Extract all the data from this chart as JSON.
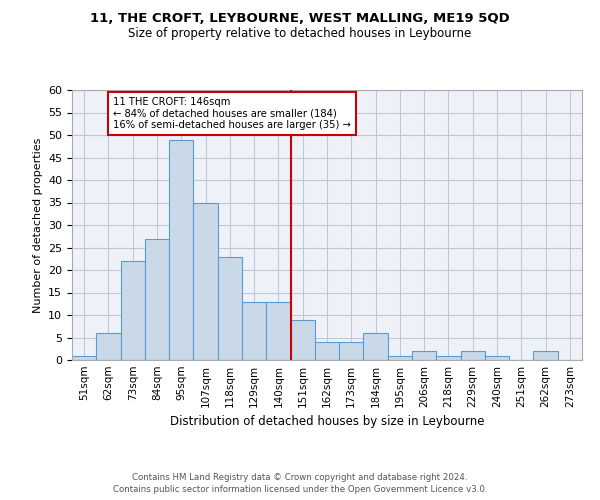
{
  "title": "11, THE CROFT, LEYBOURNE, WEST MALLING, ME19 5QD",
  "subtitle": "Size of property relative to detached houses in Leybourne",
  "xlabel": "Distribution of detached houses by size in Leybourne",
  "ylabel": "Number of detached properties",
  "bin_labels": [
    "51sqm",
    "62sqm",
    "73sqm",
    "84sqm",
    "95sqm",
    "107sqm",
    "118sqm",
    "129sqm",
    "140sqm",
    "151sqm",
    "162sqm",
    "173sqm",
    "184sqm",
    "195sqm",
    "206sqm",
    "218sqm",
    "229sqm",
    "240sqm",
    "251sqm",
    "262sqm",
    "273sqm"
  ],
  "bar_values": [
    1,
    6,
    22,
    27,
    49,
    35,
    23,
    13,
    13,
    9,
    4,
    4,
    6,
    1,
    2,
    1,
    2,
    1,
    0,
    2,
    0
  ],
  "bar_color": "#c9d9e8",
  "bar_edge_color": "#5b9bd5",
  "grid_color": "#c0c8d8",
  "background_color": "#eef2f8",
  "vline_x": 8.5,
  "vline_color": "#cc0000",
  "annotation_line1": "11 THE CROFT: 146sqm",
  "annotation_line2": "← 84% of detached houses are smaller (184)",
  "annotation_line3": "16% of semi-detached houses are larger (35) →",
  "annotation_box_color": "#cc0000",
  "ylim": [
    0,
    60
  ],
  "yticks": [
    0,
    5,
    10,
    15,
    20,
    25,
    30,
    35,
    40,
    45,
    50,
    55,
    60
  ],
  "footer1": "Contains HM Land Registry data © Crown copyright and database right 2024.",
  "footer2": "Contains public sector information licensed under the Open Government Licence v3.0."
}
